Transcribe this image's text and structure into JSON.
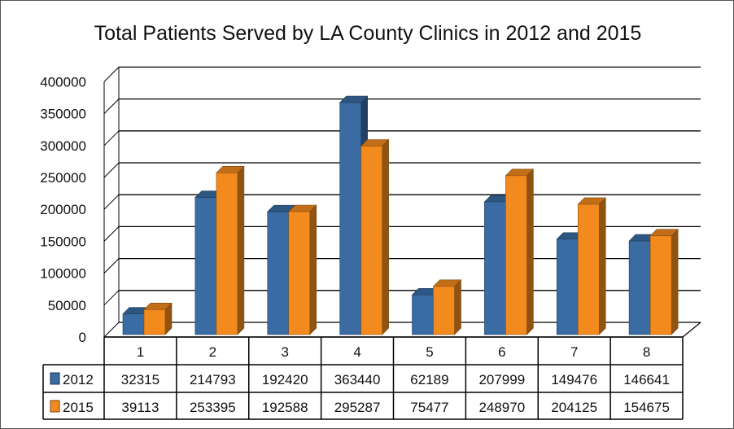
{
  "chart_data": {
    "type": "bar",
    "title": "Total Patients Served by LA County Clinics in 2012 and 2015",
    "categories": [
      "1",
      "2",
      "3",
      "4",
      "5",
      "6",
      "7",
      "8"
    ],
    "series": [
      {
        "name": "2012",
        "color": "#3A6BA3",
        "values": [
          32315,
          214793,
          192420,
          363440,
          62189,
          207999,
          149476,
          146641
        ]
      },
      {
        "name": "2015",
        "color": "#F28A1E",
        "values": [
          39113,
          253395,
          192588,
          295287,
          75477,
          248970,
          204125,
          154675
        ]
      }
    ],
    "ylim": [
      0,
      400000
    ],
    "yticks": [
      "0",
      "50000",
      "100000",
      "150000",
      "200000",
      "250000",
      "300000",
      "350000",
      "400000"
    ],
    "grid": true,
    "style": "3d clustered column with data table",
    "legend": "data table"
  }
}
